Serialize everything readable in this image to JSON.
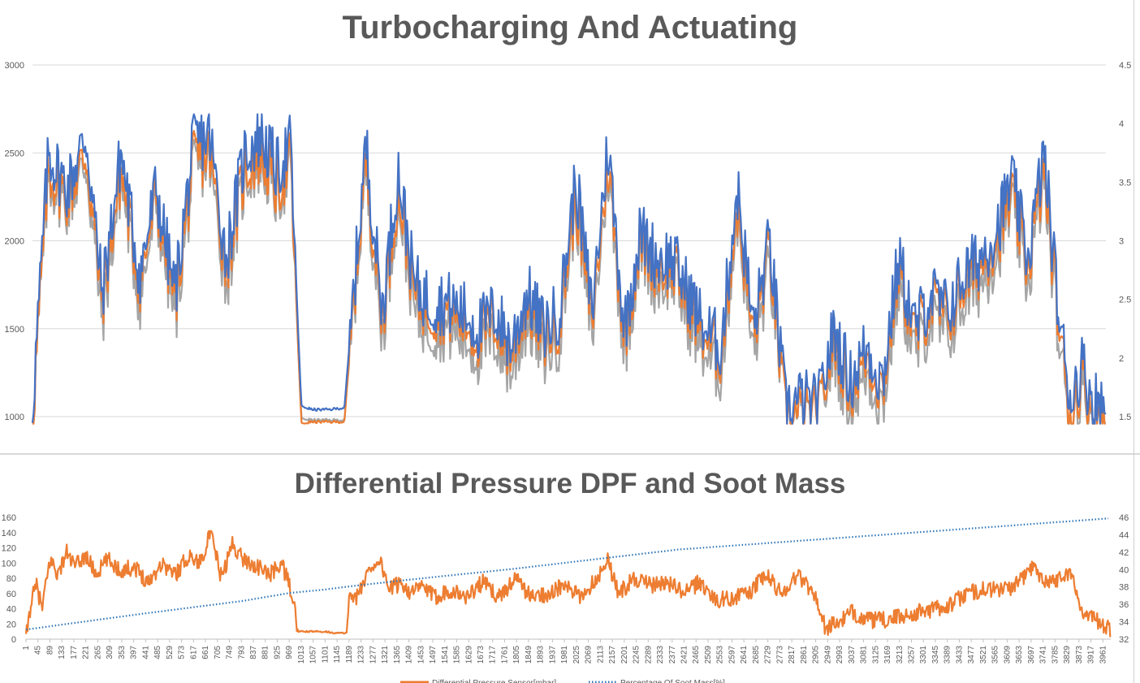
{
  "colors": {
    "blue": "#4472C4",
    "orange": "#ED7D31",
    "gray": "#A5A5A5",
    "grid": "#D9D9D9",
    "dotted": "#2E75B6",
    "text": "#595959"
  },
  "chart_data": [
    {
      "type": "line",
      "title": "Turbocharging And Actuating",
      "xlabel": "",
      "ylabel": "",
      "ylim": [
        1000,
        3000
      ],
      "y2lim": [
        1.5,
        4.5
      ],
      "yticks": [
        "1000",
        "1500",
        "2000",
        "2500",
        "3000"
      ],
      "y2ticks": [
        "1.5",
        "2",
        "2.5",
        "3",
        "3.5",
        "4",
        "4.5"
      ],
      "grid": true,
      "series": [
        {
          "color": "#4472C4",
          "axis": "left",
          "x": [
            1,
            60,
            130,
            200,
            260,
            330,
            400,
            460,
            530,
            600,
            660,
            720,
            790,
            850,
            910,
            960,
            1000,
            1040,
            1100,
            1160,
            1200,
            1240,
            1300,
            1360,
            1420,
            1480,
            1540,
            1600,
            1660,
            1720,
            1780,
            1840,
            1900,
            1960,
            2020,
            2080,
            2140,
            2200,
            2260,
            2320,
            2380,
            2440,
            2500,
            2560,
            2620,
            2680,
            2740,
            2800,
            2860,
            2920,
            2980,
            3040,
            3100,
            3160,
            3220,
            3280,
            3340,
            3400,
            3460,
            3520,
            3580,
            3640,
            3700,
            3760,
            3820,
            3860,
            3900,
            3940,
            3990
          ],
          "y": [
            1050,
            2500,
            2300,
            2600,
            1700,
            2500,
            1800,
            2300,
            1700,
            2550,
            2600,
            1900,
            2500,
            2600,
            2400,
            2550,
            1060,
            1040,
            1040,
            1050,
            1800,
            2550,
            1600,
            2400,
            1750,
            1650,
            1650,
            1600,
            1500,
            1600,
            1400,
            1700,
            1500,
            1600,
            2350,
            1600,
            2550,
            1500,
            2050,
            1900,
            1900,
            1700,
            1500,
            1400,
            2300,
            1500,
            2000,
            1050,
            1100,
            1050,
            1500,
            1200,
            1400,
            1200,
            1900,
            1500,
            1700,
            1600,
            1800,
            1900,
            2050,
            2350,
            1900,
            2500,
            1500,
            1100,
            1300,
            1100,
            1050
          ]
        },
        {
          "color": "#ED7D31",
          "axis": "left",
          "x": [
            1,
            60,
            130,
            200,
            260,
            330,
            400,
            460,
            530,
            600,
            660,
            720,
            790,
            850,
            910,
            960,
            1000,
            1040,
            1100,
            1160,
            1200,
            1240,
            1300,
            1360,
            1420,
            1480,
            1540,
            1600,
            1660,
            1720,
            1780,
            1840,
            1900,
            1960,
            2020,
            2080,
            2140,
            2200,
            2260,
            2320,
            2380,
            2440,
            2500,
            2560,
            2620,
            2680,
            2740,
            2800,
            2860,
            2920,
            2980,
            3040,
            3100,
            3160,
            3220,
            3280,
            3340,
            3400,
            3460,
            3520,
            3580,
            3640,
            3700,
            3760,
            3820,
            3860,
            3900,
            3940,
            3990
          ],
          "y": [
            980,
            2400,
            2250,
            2500,
            1650,
            2400,
            1750,
            2250,
            1650,
            2450,
            2500,
            1850,
            2400,
            2500,
            2300,
            2450,
            960,
            970,
            970,
            970,
            1750,
            2450,
            1550,
            2300,
            1700,
            1600,
            1600,
            1550,
            1450,
            1550,
            1350,
            1650,
            1450,
            1550,
            2250,
            1550,
            2450,
            1450,
            2000,
            1850,
            1850,
            1650,
            1450,
            1350,
            2200,
            1450,
            1950,
            980,
            1020,
            980,
            1450,
            1150,
            1350,
            1150,
            1850,
            1450,
            1650,
            1550,
            1750,
            1850,
            2000,
            2250,
            1850,
            2400,
            1450,
            1000,
            1250,
            1000,
            990
          ]
        },
        {
          "color": "#A5A5A5",
          "axis": "left",
          "x": [
            1,
            60,
            130,
            200,
            260,
            330,
            400,
            460,
            530,
            600,
            660,
            720,
            790,
            850,
            910,
            960,
            1000,
            1040,
            1100,
            1160,
            1200,
            1240,
            1300,
            1360,
            1420,
            1480,
            1540,
            1600,
            1660,
            1720,
            1780,
            1840,
            1900,
            1960,
            2020,
            2080,
            2140,
            2200,
            2260,
            2320,
            2380,
            2440,
            2500,
            2560,
            2620,
            2680,
            2740,
            2800,
            2860,
            2920,
            2980,
            3040,
            3100,
            3160,
            3220,
            3280,
            3340,
            3400,
            3460,
            3520,
            3580,
            3640,
            3700,
            3760,
            3820,
            3860,
            3900,
            3940,
            3990
          ],
          "y": [
            1000,
            2350,
            2200,
            2450,
            1550,
            2350,
            1650,
            2200,
            1550,
            2400,
            2450,
            1750,
            2350,
            2450,
            2250,
            2400,
            990,
            980,
            980,
            980,
            1700,
            2400,
            1450,
            2250,
            1600,
            1500,
            1500,
            1450,
            1350,
            1450,
            1250,
            1550,
            1350,
            1450,
            2200,
            1450,
            2400,
            1350,
            1950,
            1750,
            1800,
            1550,
            1350,
            1250,
            2150,
            1350,
            1850,
            1000,
            1000,
            1000,
            1350,
            1050,
            1250,
            1050,
            1750,
            1350,
            1550,
            1450,
            1650,
            1750,
            1900,
            2200,
            1750,
            2350,
            1350,
            1000,
            1150,
            1000,
            1000
          ]
        }
      ]
    },
    {
      "type": "line",
      "title": "Differential Pressure DPF and Soot Mass",
      "xlabel": "",
      "ylabel": "",
      "ylim": [
        0,
        160
      ],
      "y2lim": [
        32,
        46
      ],
      "yticks": [
        "0",
        "20",
        "40",
        "60",
        "80",
        "100",
        "120",
        "140",
        "160"
      ],
      "y2ticks": [
        "32",
        "34",
        "36",
        "38",
        "40",
        "42",
        "44",
        "46"
      ],
      "grid": false,
      "legend": "bottom",
      "categories": [
        "1",
        "45",
        "89",
        "133",
        "177",
        "221",
        "265",
        "309",
        "353",
        "397",
        "441",
        "485",
        "529",
        "573",
        "617",
        "661",
        "705",
        "749",
        "793",
        "837",
        "881",
        "925",
        "969",
        "1013",
        "1057",
        "1101",
        "1145",
        "1189",
        "1233",
        "1277",
        "1321",
        "1365",
        "1409",
        "1453",
        "1497",
        "1541",
        "1585",
        "1629",
        "1673",
        "1717",
        "1761",
        "1805",
        "1849",
        "1893",
        "1937",
        "1981",
        "2025",
        "2069",
        "2113",
        "2157",
        "2201",
        "2245",
        "2289",
        "2333",
        "2377",
        "2421",
        "2465",
        "2509",
        "2553",
        "2597",
        "2641",
        "2685",
        "2729",
        "2773",
        "2817",
        "2861",
        "2905",
        "2949",
        "2993",
        "3037",
        "3081",
        "3125",
        "3169",
        "3213",
        "3257",
        "3301",
        "3345",
        "3389",
        "3433",
        "3477",
        "3521",
        "3565",
        "3609",
        "3653",
        "3697",
        "3741",
        "3785",
        "3829",
        "3873",
        "3917",
        "3961"
      ],
      "series": [
        {
          "name": "Differential Pressure Sensor[mbar]",
          "color": "#ED7D31",
          "axis": "left",
          "style": "solid",
          "x": [
            1,
            20,
            40,
            60,
            90,
            120,
            150,
            180,
            220,
            260,
            300,
            350,
            400,
            450,
            500,
            550,
            600,
            640,
            680,
            720,
            760,
            800,
            850,
            900,
            940,
            980,
            1000,
            1020,
            1060,
            1100,
            1140,
            1180,
            1190,
            1220,
            1260,
            1300,
            1340,
            1380,
            1420,
            1460,
            1500,
            1560,
            1620,
            1680,
            1740,
            1800,
            1860,
            1920,
            1980,
            2040,
            2100,
            2140,
            2180,
            2240,
            2300,
            2360,
            2420,
            2480,
            2540,
            2600,
            2660,
            2720,
            2780,
            2840,
            2900,
            2940,
            2980,
            3040,
            3100,
            3160,
            3220,
            3280,
            3340,
            3400,
            3460,
            3520,
            3580,
            3640,
            3700,
            3760,
            3800,
            3840,
            3880,
            3920,
            3960,
            3990
          ],
          "y": [
            0,
            50,
            70,
            40,
            105,
            85,
            115,
            95,
            110,
            85,
            105,
            90,
            95,
            75,
            100,
            85,
            110,
            100,
            140,
            80,
            125,
            105,
            95,
            85,
            100,
            60,
            10,
            10,
            10,
            10,
            8,
            8,
            60,
            55,
            90,
            105,
            65,
            75,
            60,
            70,
            55,
            65,
            55,
            75,
            55,
            80,
            55,
            60,
            70,
            55,
            80,
            105,
            60,
            80,
            70,
            75,
            60,
            75,
            50,
            55,
            60,
            85,
            60,
            85,
            60,
            15,
            20,
            35,
            25,
            25,
            30,
            35,
            40,
            45,
            60,
            65,
            65,
            70,
            95,
            75,
            80,
            90,
            40,
            30,
            20,
            10
          ]
        },
        {
          "name": "Percentage Of Soot Mass[%]",
          "color": "#2E75B6",
          "axis": "right",
          "style": "dotted",
          "x": [
            1,
            400,
            800,
            969,
            1100,
            1200,
            1400,
            1800,
            2100,
            2400,
            2800,
            3200,
            3600,
            3990
          ],
          "y": [
            33.1,
            34.8,
            36.4,
            37.3,
            37.7,
            38.1,
            38.8,
            40.1,
            41.2,
            42.3,
            43.2,
            44.1,
            45.0,
            45.9
          ]
        }
      ]
    }
  ]
}
